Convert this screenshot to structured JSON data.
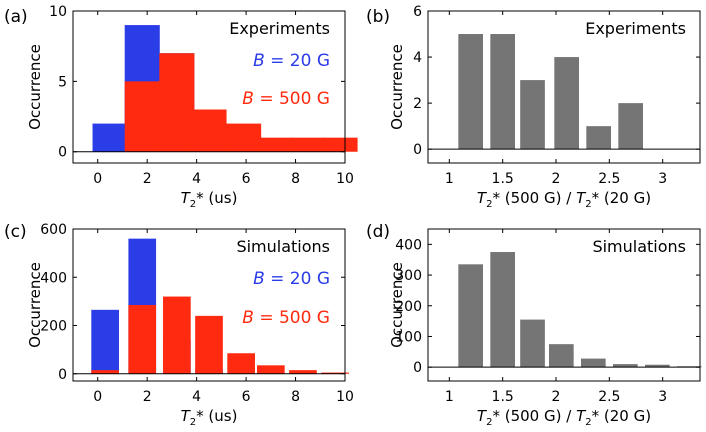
{
  "figure": {
    "x_ticks_hist": [
      "0",
      "2",
      "4",
      "6",
      "8",
      "10"
    ],
    "x_ticks_ratio": [
      "1",
      "1.5",
      "2",
      "2.5",
      "3"
    ]
  },
  "colors": {
    "blue": "#2b3de6",
    "red": "#ff2a0f",
    "gray": "#757575",
    "axis": "#000000"
  },
  "chart_data": [
    {
      "panel": "(a)",
      "type": "bar",
      "title": "Experiments",
      "xlabel": "T2* (us)",
      "ylabel": "Occurrence",
      "xlim": [
        -1,
        10
      ],
      "ylim": [
        -0.8,
        10
      ],
      "yticks": [
        0,
        5,
        10
      ],
      "legend": {
        "label_b": "B",
        "blue_label": "= 20 G",
        "red_label": "= 500 G",
        "position": "top-right"
      },
      "bin_width": 1.5,
      "series": [
        {
          "name": "B = 20 G",
          "color": "blue",
          "x": [
            0.5,
            1.8,
            3.2,
            4.5
          ],
          "values": [
            2,
            9,
            7,
            2
          ]
        },
        {
          "name": "B = 500 G",
          "color": "red",
          "x": [
            1.8,
            3.2,
            4.5,
            5.9,
            7.2,
            8.5,
            9.8
          ],
          "values": [
            5,
            7,
            3,
            2,
            1,
            1,
            1
          ]
        }
      ]
    },
    {
      "panel": "(b)",
      "type": "bar",
      "title": "Experiments",
      "xlabel": "T2* (500 G) / T2* (20 G)",
      "ylabel": "Occurrence",
      "xlim": [
        0.8,
        3.35
      ],
      "ylim": [
        -0.6,
        6
      ],
      "yticks": [
        0,
        2,
        4,
        6
      ],
      "bin_width": 0.25,
      "series": [
        {
          "name": "ratio",
          "color": "gray",
          "x": [
            1.2,
            1.5,
            1.78,
            2.1,
            2.4,
            2.7
          ],
          "values": [
            5,
            5,
            3,
            4,
            1,
            2
          ]
        }
      ]
    },
    {
      "panel": "(c)",
      "type": "bar",
      "title": "Simulations",
      "xlabel": "T2* (us)",
      "ylabel": "Occurrence",
      "xlim": [
        -1,
        10
      ],
      "ylim": [
        -30,
        600
      ],
      "yticks": [
        0,
        200,
        400,
        600
      ],
      "legend": {
        "label_b": "B",
        "blue_label": "= 20 G",
        "red_label": "= 500 G",
        "position": "top-right"
      },
      "bin_width": 1.2,
      "series": [
        {
          "name": "B = 20 G",
          "color": "blue",
          "x": [
            0.3,
            1.8,
            3.2,
            4.5
          ],
          "values": [
            265,
            560,
            140,
            20
          ]
        },
        {
          "name": "B = 500 G",
          "color": "red",
          "x": [
            0.3,
            1.8,
            3.2,
            4.5,
            5.8,
            7.0,
            8.3,
            9.6
          ],
          "values": [
            15,
            285,
            320,
            240,
            85,
            35,
            15,
            5
          ]
        }
      ]
    },
    {
      "panel": "(d)",
      "type": "bar",
      "title": "Simulations",
      "xlabel": "T2* (500 G) / T2* (20 G)",
      "ylabel": "Occurrence",
      "xlim": [
        0.8,
        3.35
      ],
      "ylim": [
        -45,
        450
      ],
      "yticks": [
        0,
        100,
        200,
        300,
        400
      ],
      "bin_width": 0.25,
      "series": [
        {
          "name": "ratio",
          "color": "gray",
          "x": [
            1.2,
            1.5,
            1.78,
            2.05,
            2.35,
            2.65,
            2.95,
            3.25
          ],
          "values": [
            335,
            375,
            155,
            75,
            28,
            10,
            8,
            3
          ]
        }
      ]
    }
  ]
}
